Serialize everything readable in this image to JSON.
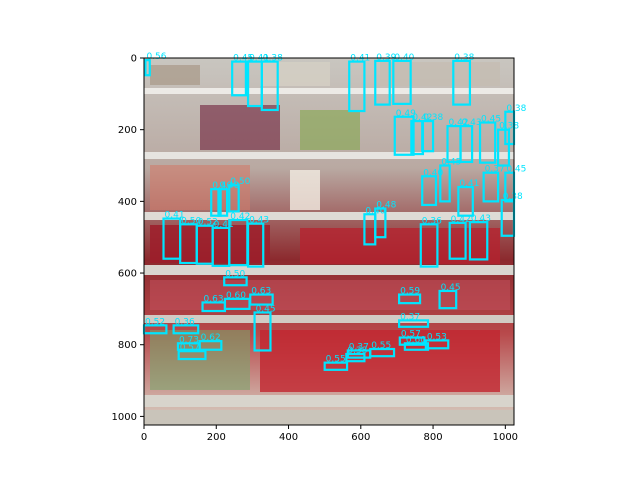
{
  "chart_data": {
    "type": "image-with-detection-boxes",
    "title": "",
    "xlabel": "",
    "ylabel": "",
    "xlim": [
      0,
      1024
    ],
    "ylim": [
      1024,
      0
    ],
    "xticks": [
      0,
      200,
      400,
      600,
      800,
      1000
    ],
    "yticks": [
      0,
      200,
      400,
      600,
      800,
      1000
    ],
    "box_color": "#00e5ff",
    "image_description": "photo of store shelves with candles",
    "boxes": [
      {
        "score": "0.56",
        "x0": 4,
        "y0": 6,
        "x1": 16,
        "y1": 48
      },
      {
        "score": "0.45",
        "x0": 244,
        "y0": 10,
        "x1": 282,
        "y1": 104
      },
      {
        "score": "0.41",
        "x0": 288,
        "y0": 10,
        "x1": 326,
        "y1": 134
      },
      {
        "score": "0.38",
        "x0": 326,
        "y1": 145,
        "y0": 10,
        "x1": 370
      },
      {
        "score": "0.41",
        "x0": 568,
        "y0": 10,
        "x1": 610,
        "y1": 148
      },
      {
        "score": "0.39",
        "x0": 640,
        "y0": 8,
        "x1": 680,
        "y1": 130
      },
      {
        "score": "0.40",
        "x0": 690,
        "y0": 8,
        "x1": 738,
        "y1": 128
      },
      {
        "score": "0.38",
        "x0": 856,
        "y0": 8,
        "x1": 902,
        "y1": 130
      },
      {
        "score": "0.49",
        "x0": 694,
        "y0": 164,
        "x1": 746,
        "y1": 270
      },
      {
        "score": "0.42",
        "x0": 740,
        "y0": 176,
        "x1": 772,
        "y1": 268
      },
      {
        "score": "0.38",
        "x0": 770,
        "y0": 176,
        "x1": 800,
        "y1": 260
      },
      {
        "score": "0.42",
        "x0": 840,
        "y0": 190,
        "x1": 876,
        "y1": 290
      },
      {
        "score": "0.43",
        "x0": 876,
        "y0": 190,
        "x1": 908,
        "y1": 290
      },
      {
        "score": "0.45",
        "x0": 930,
        "y0": 180,
        "x1": 972,
        "y1": 292
      },
      {
        "score": "0.38",
        "x0": 1000,
        "y0": 150,
        "x1": 1024,
        "y1": 240
      },
      {
        "score": "0.38",
        "x0": 980,
        "y0": 200,
        "x1": 1010,
        "y1": 300
      },
      {
        "score": "0.50",
        "x0": 236,
        "y0": 355,
        "x1": 262,
        "y1": 428
      },
      {
        "score": "0.40",
        "x0": 186,
        "y0": 366,
        "x1": 212,
        "y1": 440
      },
      {
        "score": "0.40",
        "x0": 206,
        "y0": 366,
        "x1": 230,
        "y1": 440
      },
      {
        "score": "0.40",
        "x0": 770,
        "y0": 330,
        "x1": 808,
        "y1": 410
      },
      {
        "score": "0.45",
        "x0": 820,
        "y0": 300,
        "x1": 846,
        "y1": 400
      },
      {
        "score": "0.37",
        "x0": 940,
        "y0": 320,
        "x1": 980,
        "y1": 400
      },
      {
        "score": "0.45",
        "x0": 1000,
        "y0": 320,
        "x1": 1024,
        "y1": 400
      },
      {
        "score": "0.41",
        "x0": 870,
        "y0": 360,
        "x1": 910,
        "y1": 440
      },
      {
        "score": "0.41",
        "x0": 54,
        "y0": 448,
        "x1": 100,
        "y1": 560
      },
      {
        "score": "0.50",
        "x0": 100,
        "y0": 464,
        "x1": 146,
        "y1": 572
      },
      {
        "score": "0.52",
        "x0": 146,
        "y0": 468,
        "x1": 190,
        "y1": 574
      },
      {
        "score": "0.41",
        "x0": 190,
        "y0": 474,
        "x1": 236,
        "y1": 580
      },
      {
        "score": "0.42",
        "x0": 236,
        "y0": 452,
        "x1": 286,
        "y1": 578
      },
      {
        "score": "0.43",
        "x0": 288,
        "y0": 462,
        "x1": 330,
        "y1": 582
      },
      {
        "score": "0.40",
        "x0": 610,
        "y0": 436,
        "x1": 640,
        "y1": 520
      },
      {
        "score": "0.48",
        "x0": 640,
        "y0": 420,
        "x1": 668,
        "y1": 500
      },
      {
        "score": "0.36",
        "x0": 766,
        "y0": 464,
        "x1": 812,
        "y1": 582
      },
      {
        "score": "0.42",
        "x0": 846,
        "y0": 460,
        "x1": 890,
        "y1": 560
      },
      {
        "score": "0.43",
        "x0": 902,
        "y0": 458,
        "x1": 950,
        "y1": 562
      },
      {
        "score": "0.38",
        "x0": 990,
        "y0": 396,
        "x1": 1024,
        "y1": 496
      },
      {
        "score": "0.50",
        "x0": 222,
        "y0": 612,
        "x1": 284,
        "y1": 634
      },
      {
        "score": "0.63",
        "x0": 162,
        "y0": 682,
        "x1": 224,
        "y1": 706
      },
      {
        "score": "0.60",
        "x0": 224,
        "y0": 672,
        "x1": 292,
        "y1": 700
      },
      {
        "score": "0.63",
        "x0": 294,
        "y0": 660,
        "x1": 356,
        "y1": 688
      },
      {
        "score": "0.45",
        "x0": 306,
        "y0": 710,
        "x1": 350,
        "y1": 816
      },
      {
        "score": "0.59",
        "x0": 706,
        "y0": 660,
        "x1": 764,
        "y1": 684
      },
      {
        "score": "0.45",
        "x0": 818,
        "y0": 650,
        "x1": 864,
        "y1": 698
      },
      {
        "score": "0.52",
        "x0": 0,
        "y0": 746,
        "x1": 62,
        "y1": 768
      },
      {
        "score": "0.36",
        "x0": 82,
        "y0": 746,
        "x1": 150,
        "y1": 768
      },
      {
        "score": "0.62",
        "x0": 154,
        "y0": 790,
        "x1": 214,
        "y1": 814
      },
      {
        "score": "0.73",
        "x0": 94,
        "y0": 796,
        "x1": 154,
        "y1": 814
      },
      {
        "score": "0.57",
        "x0": 96,
        "y0": 818,
        "x1": 170,
        "y1": 840
      },
      {
        "score": "0.37",
        "x0": 706,
        "y0": 732,
        "x1": 786,
        "y1": 750
      },
      {
        "score": "0.53",
        "x0": 780,
        "y0": 788,
        "x1": 842,
        "y1": 810
      },
      {
        "score": "0.57",
        "x0": 708,
        "y0": 780,
        "x1": 776,
        "y1": 800
      },
      {
        "score": "0.60",
        "x0": 722,
        "y0": 796,
        "x1": 786,
        "y1": 814
      },
      {
        "score": "0.55",
        "x0": 626,
        "y0": 812,
        "x1": 692,
        "y1": 832
      },
      {
        "score": "0.37",
        "x0": 564,
        "y0": 816,
        "x1": 626,
        "y1": 836
      },
      {
        "score": "0.38",
        "x0": 560,
        "y0": 826,
        "x1": 610,
        "y1": 846
      },
      {
        "score": "0.55",
        "x0": 500,
        "y0": 850,
        "x1": 562,
        "y1": 870
      }
    ]
  }
}
